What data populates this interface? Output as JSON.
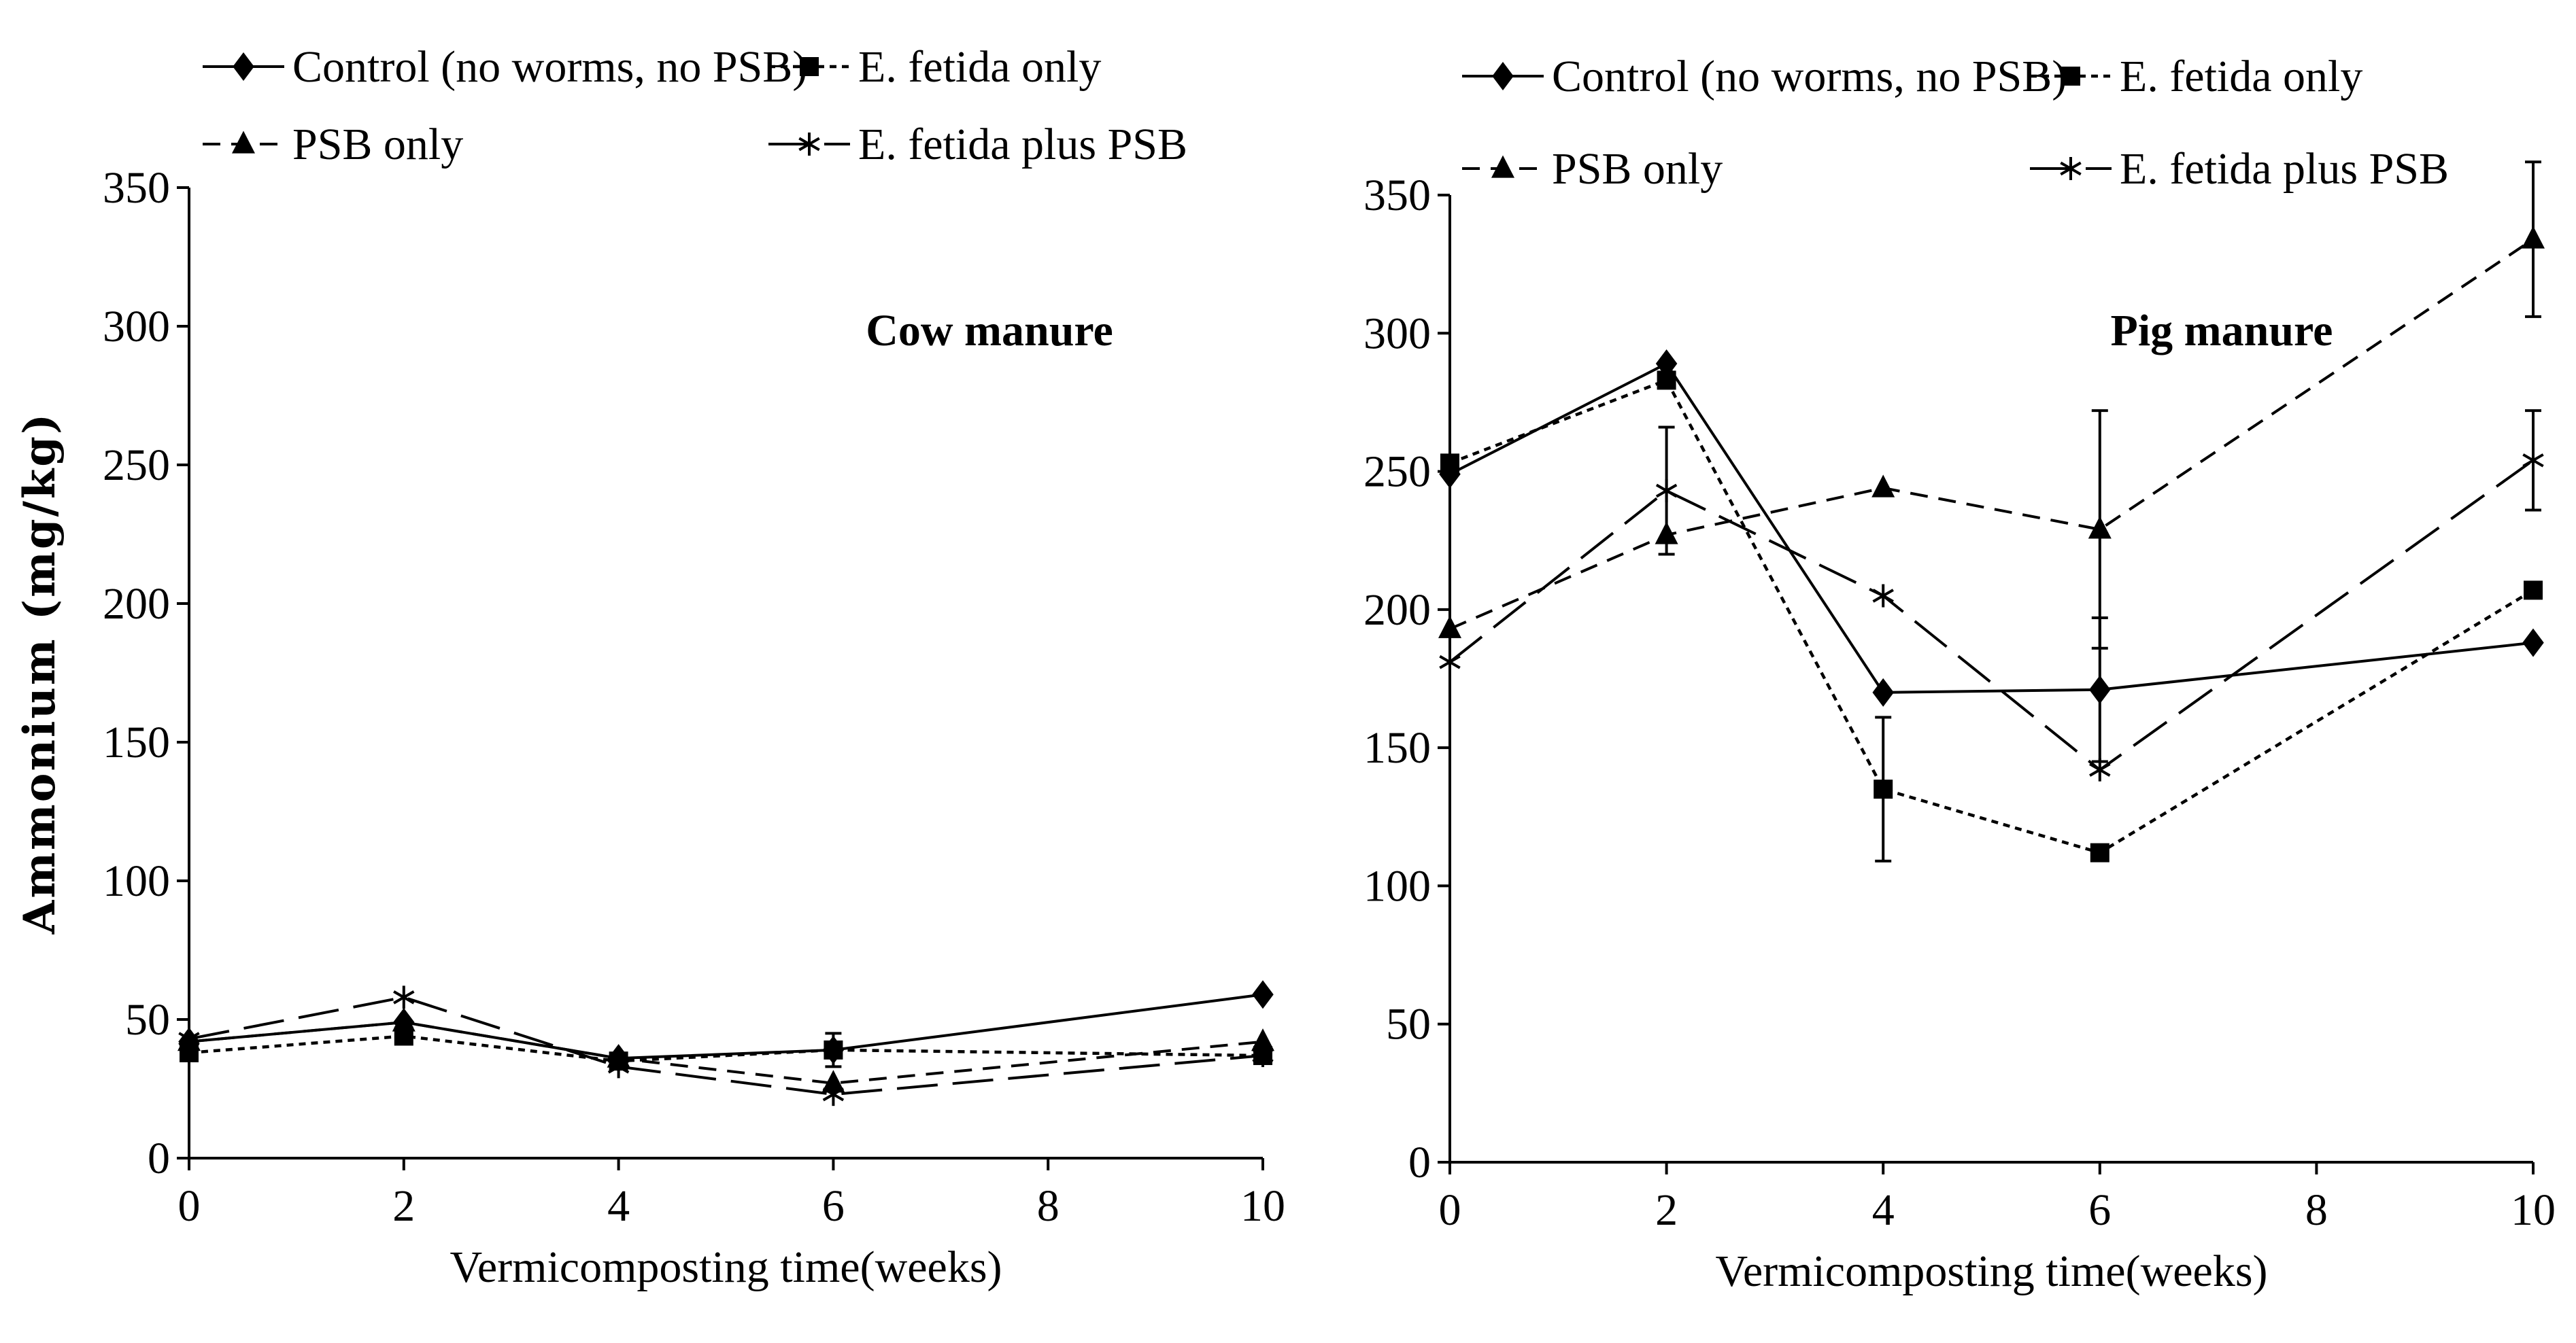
{
  "chart_data": [
    {
      "type": "line",
      "title": "",
      "annotation": "Cow manure",
      "xlabel": "Vermicomposting time(weeks)",
      "ylabel": "Ammonium (mg/kg)",
      "xlim": [
        0,
        10
      ],
      "ylim": [
        0,
        350
      ],
      "xticks": [
        0,
        2,
        4,
        6,
        8,
        10
      ],
      "yticks": [
        0,
        50,
        100,
        150,
        200,
        250,
        300,
        350
      ],
      "x": [
        0,
        2,
        4,
        6,
        10
      ],
      "grid": false,
      "legend_position": "top",
      "series": [
        {
          "name": "Control (no worms, no PSB)",
          "marker": "diamond",
          "line": "solid",
          "values": [
            42,
            49,
            36,
            39,
            59
          ],
          "errors": [
            0,
            0,
            0,
            0,
            0
          ]
        },
        {
          "name": "E. fetida only",
          "marker": "square",
          "line": "dotted",
          "values": [
            38,
            44,
            35,
            39,
            37
          ],
          "errors": [
            0,
            0,
            0,
            6,
            0
          ]
        },
        {
          "name": "PSB only",
          "marker": "triangle",
          "line": "dashed",
          "values": [
            42,
            49,
            36,
            27,
            42
          ],
          "errors": [
            0,
            0,
            0,
            0,
            0
          ]
        },
        {
          "name": "E. fetida plus PSB",
          "marker": "asterisk",
          "line": "longdash",
          "values": [
            43,
            58,
            33,
            23,
            37
          ],
          "errors": [
            0,
            0,
            0,
            0,
            0
          ]
        }
      ]
    },
    {
      "type": "line",
      "title": "",
      "annotation": "Pig manure",
      "xlabel": "Vermicomposting time(weeks)",
      "ylabel": "",
      "xlim": [
        0,
        10
      ],
      "ylim": [
        0,
        350
      ],
      "xticks": [
        0,
        2,
        4,
        6,
        8,
        10
      ],
      "yticks": [
        0,
        50,
        100,
        150,
        200,
        250,
        300,
        350
      ],
      "x": [
        0,
        2,
        4,
        6,
        10
      ],
      "grid": false,
      "legend_position": "top",
      "series": [
        {
          "name": "Control (no worms, no PSB)",
          "marker": "diamond",
          "line": "solid",
          "values": [
            249,
            289,
            170,
            171,
            188
          ],
          "errors": [
            0,
            0,
            0,
            26,
            0
          ]
        },
        {
          "name": "E. fetida only",
          "marker": "square",
          "line": "dotted",
          "values": [
            253,
            283,
            135,
            112,
            207
          ],
          "errors": [
            0,
            0,
            26,
            0,
            0
          ]
        },
        {
          "name": "PSB only",
          "marker": "triangle",
          "line": "dashed",
          "values": [
            193,
            227,
            244,
            229,
            334
          ],
          "errors": [
            0,
            0,
            0,
            43,
            28
          ]
        },
        {
          "name": "E. fetida plus PSB",
          "marker": "asterisk",
          "line": "longdash",
          "values": [
            181,
            243,
            205,
            142,
            254
          ],
          "errors": [
            0,
            23,
            0,
            0,
            18
          ]
        }
      ]
    }
  ]
}
